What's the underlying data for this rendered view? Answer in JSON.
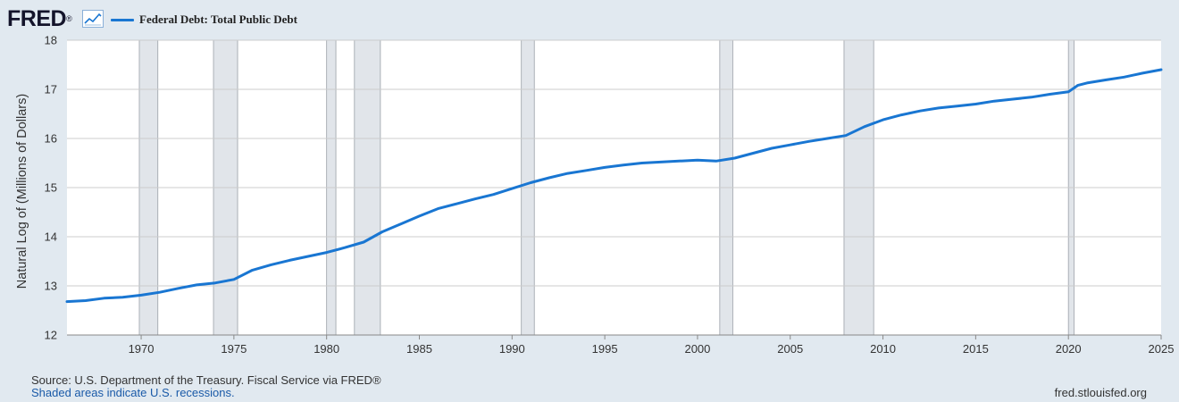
{
  "header": {
    "logo_text": "FRED",
    "logo_registered": "®",
    "trend_icon": "line-chart-icon",
    "legend_label": "Federal Debt: Total Public Debt"
  },
  "colors": {
    "page_background": "#e1e9f0",
    "plot_background": "#ffffff",
    "series": "#1976d2",
    "recession_shade": "#e1e5ea",
    "gridline": "#cccccc"
  },
  "footer": {
    "source": "Source: U.S. Department of the Treasury. Fiscal Service via FRED®",
    "recession_note": "Shaded areas indicate U.S. recessions.",
    "site": "fred.stlouisfed.org"
  },
  "chart_data": {
    "type": "line",
    "title": "",
    "xlabel": "",
    "ylabel": "Natural Log of (Millions of Dollars)",
    "xlim": [
      1966.0,
      2025.0
    ],
    "ylim": [
      12,
      18
    ],
    "x_ticks": [
      1970,
      1975,
      1980,
      1985,
      1990,
      1995,
      2000,
      2005,
      2010,
      2015,
      2020,
      2025
    ],
    "y_ticks": [
      12,
      13,
      14,
      15,
      16,
      17,
      18
    ],
    "grid": "horizontal",
    "legend": "top-left",
    "recessions": [
      [
        1969.9,
        1970.9
      ],
      [
        1973.9,
        1975.2
      ],
      [
        1980.0,
        1980.5
      ],
      [
        1981.5,
        1982.9
      ],
      [
        1990.5,
        1991.2
      ],
      [
        2001.2,
        2001.9
      ],
      [
        2007.9,
        2009.5
      ],
      [
        2020.0,
        2020.3
      ]
    ],
    "series": [
      {
        "name": "Federal Debt: Total Public Debt",
        "x": [
          1966.0,
          1967.0,
          1968.0,
          1969.0,
          1970.0,
          1971.0,
          1972.0,
          1973.0,
          1974.0,
          1975.0,
          1976.0,
          1977.0,
          1978.0,
          1979.0,
          1980.0,
          1981.0,
          1982.0,
          1983.0,
          1984.0,
          1985.0,
          1986.0,
          1987.0,
          1988.0,
          1989.0,
          1990.0,
          1991.0,
          1992.0,
          1993.0,
          1994.0,
          1995.0,
          1996.0,
          1997.0,
          1998.0,
          1999.0,
          2000.0,
          2001.0,
          2002.0,
          2003.0,
          2004.0,
          2005.0,
          2006.0,
          2007.0,
          2008.0,
          2009.0,
          2010.0,
          2011.0,
          2012.0,
          2013.0,
          2014.0,
          2015.0,
          2016.0,
          2017.0,
          2018.0,
          2019.0,
          2020.0,
          2020.5,
          2021.0,
          2022.0,
          2023.0,
          2024.0,
          2025.0
        ],
        "values": [
          12.68,
          12.7,
          12.75,
          12.77,
          12.81,
          12.87,
          12.95,
          13.02,
          13.06,
          13.13,
          13.32,
          13.43,
          13.52,
          13.6,
          13.68,
          13.78,
          13.89,
          14.1,
          14.26,
          14.42,
          14.57,
          14.67,
          14.77,
          14.86,
          14.98,
          15.1,
          15.2,
          15.29,
          15.35,
          15.41,
          15.46,
          15.5,
          15.52,
          15.54,
          15.56,
          15.54,
          15.6,
          15.7,
          15.8,
          15.87,
          15.94,
          16.0,
          16.06,
          16.24,
          16.38,
          16.48,
          16.56,
          16.62,
          16.66,
          16.7,
          16.76,
          16.8,
          16.84,
          16.9,
          16.95,
          17.08,
          17.13,
          17.19,
          17.25,
          17.33,
          17.4
        ]
      }
    ]
  }
}
